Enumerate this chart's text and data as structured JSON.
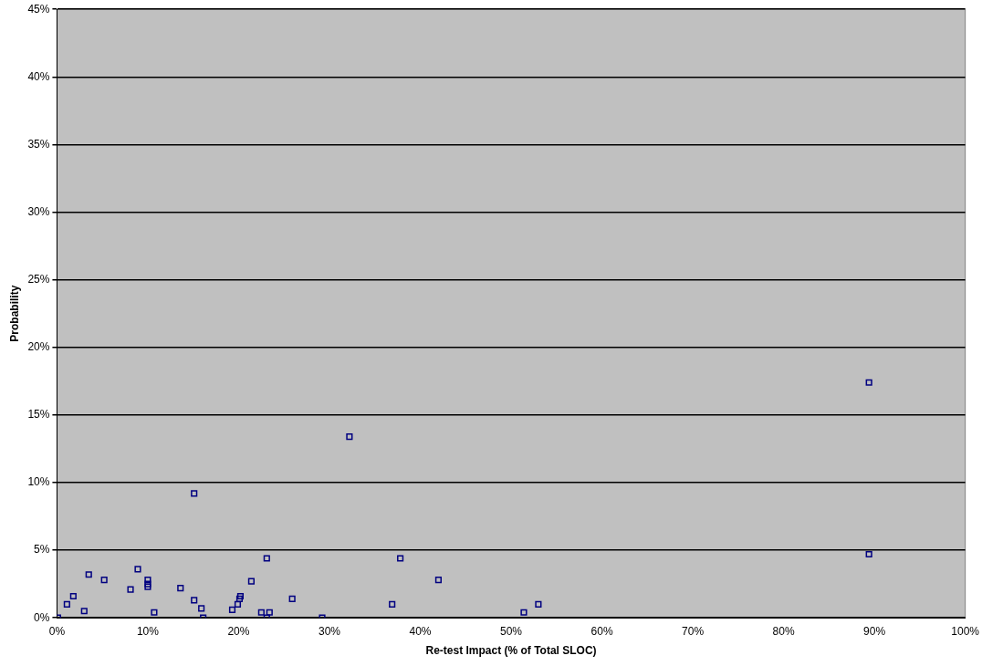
{
  "chart_data": {
    "type": "scatter",
    "xlabel": "Re-test Impact (% of Total SLOC)",
    "ylabel": "Probability",
    "marker": "square",
    "grid": "y",
    "legend": false,
    "xlim": [
      0,
      100
    ],
    "xticks": [
      {
        "value": 0,
        "label": "0%"
      },
      {
        "value": 10,
        "label": "10%"
      },
      {
        "value": 20,
        "label": "20%"
      },
      {
        "value": 30,
        "label": "30%"
      },
      {
        "value": 40,
        "label": "40%"
      },
      {
        "value": 50,
        "label": "50%"
      },
      {
        "value": 60,
        "label": "60%"
      },
      {
        "value": 70,
        "label": "70%"
      },
      {
        "value": 80,
        "label": "80%"
      },
      {
        "value": 90,
        "label": "90%"
      },
      {
        "value": 100,
        "label": "100%"
      }
    ],
    "ylim": [
      0,
      45
    ],
    "yticks": [
      {
        "value": 0,
        "label": "0%"
      },
      {
        "value": 5,
        "label": "5%"
      },
      {
        "value": 10,
        "label": "10%"
      },
      {
        "value": 15,
        "label": "15%"
      },
      {
        "value": 20,
        "label": "20%"
      },
      {
        "value": 25,
        "label": "25%"
      },
      {
        "value": 30,
        "label": "30%"
      },
      {
        "value": 35,
        "label": "35%"
      },
      {
        "value": 40,
        "label": "40%"
      },
      {
        "value": 45,
        "label": "45%"
      }
    ],
    "series": [
      {
        "color": "#000080",
        "x": [
          0.1,
          1.1,
          1.8,
          3.0,
          3.5,
          5.2,
          8.1,
          8.9,
          10.0,
          10.0,
          10.0,
          10.7,
          13.6,
          15.1,
          15.1,
          15.9,
          16.1,
          19.3,
          19.9,
          20.1,
          20.2,
          21.4,
          22.5,
          23.1,
          23.1,
          23.4,
          25.9,
          29.2,
          32.2,
          36.9,
          37.8,
          42.0,
          51.4,
          53.0,
          89.4,
          89.4
        ],
        "values": [
          0.0,
          1.0,
          1.6,
          0.5,
          3.2,
          2.8,
          2.1,
          3.6,
          2.8,
          2.5,
          2.3,
          0.4,
          2.2,
          9.2,
          1.3,
          0.7,
          0.0,
          0.6,
          1.0,
          1.4,
          1.6,
          2.7,
          0.4,
          4.4,
          0.0,
          0.4,
          1.4,
          0.0,
          13.4,
          1.0,
          4.4,
          2.8,
          0.4,
          1.0,
          17.4,
          4.7
        ]
      }
    ]
  }
}
